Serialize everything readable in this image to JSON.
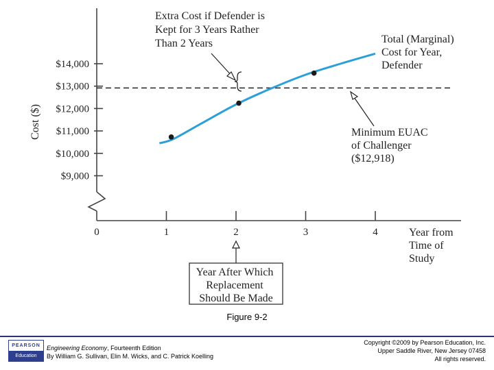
{
  "chart_data": {
    "type": "line",
    "ylabel": "Cost ($)",
    "xlabel": "Year from Time of Study",
    "xlabel_lines": [
      "Year from",
      "Time of",
      "Study"
    ],
    "x_ticks": [
      "0",
      "1",
      "2",
      "3",
      "4"
    ],
    "y_ticks": [
      "$14,000",
      "$13,000",
      "$12,000",
      "$11,000",
      "$10,000",
      "$9,000"
    ],
    "y_tick_values": [
      14000,
      13000,
      12000,
      11000,
      10000,
      9000
    ],
    "ylim": [
      9000,
      14300
    ],
    "xlim": [
      0,
      5.3
    ],
    "series": [
      {
        "name": "Total (Marginal) Cost for Year, Defender",
        "color": "#2b9fd9",
        "x": [
          0.9,
          1.1,
          1.5,
          2.0,
          2.5,
          3.0,
          3.5,
          4.0
        ],
        "y": [
          10450,
          10640,
          11330,
          12180,
          12890,
          13510,
          14000,
          14450
        ]
      }
    ],
    "points": [
      {
        "x": 1.07,
        "y": 10730
      },
      {
        "x": 2.04,
        "y": 12240
      },
      {
        "x": 3.12,
        "y": 13580
      }
    ],
    "reference_line": {
      "value": 12918,
      "style": "dashed"
    },
    "annotations": {
      "extra_cost": [
        "Extra Cost if Defender is",
        "Kept for 3 Years Rather",
        "Than 2 Years"
      ],
      "total_cost": [
        "Total (Marginal)",
        "Cost for Year,",
        "Defender"
      ],
      "min_euac": [
        "Minimum EUAC",
        "of Challenger",
        "($12,918)"
      ],
      "replacement": [
        "Year After Which",
        "Replacement",
        "Should Be Made"
      ]
    }
  },
  "caption": "Figure 9-2",
  "footer": {
    "logo_top": "PEARSON",
    "logo_bottom": "Education",
    "book_title": "Engineering Economy",
    "book_edition": ", Fourteenth Edition",
    "authors": "By William G. Sullivan, Elin M. Wicks, and C. Patrick Koelling",
    "copyright_lines": [
      "Copyright ©2009 by Pearson Education, Inc.",
      "Upper Saddle River, New Jersey 07458",
      "All rights reserved."
    ]
  }
}
